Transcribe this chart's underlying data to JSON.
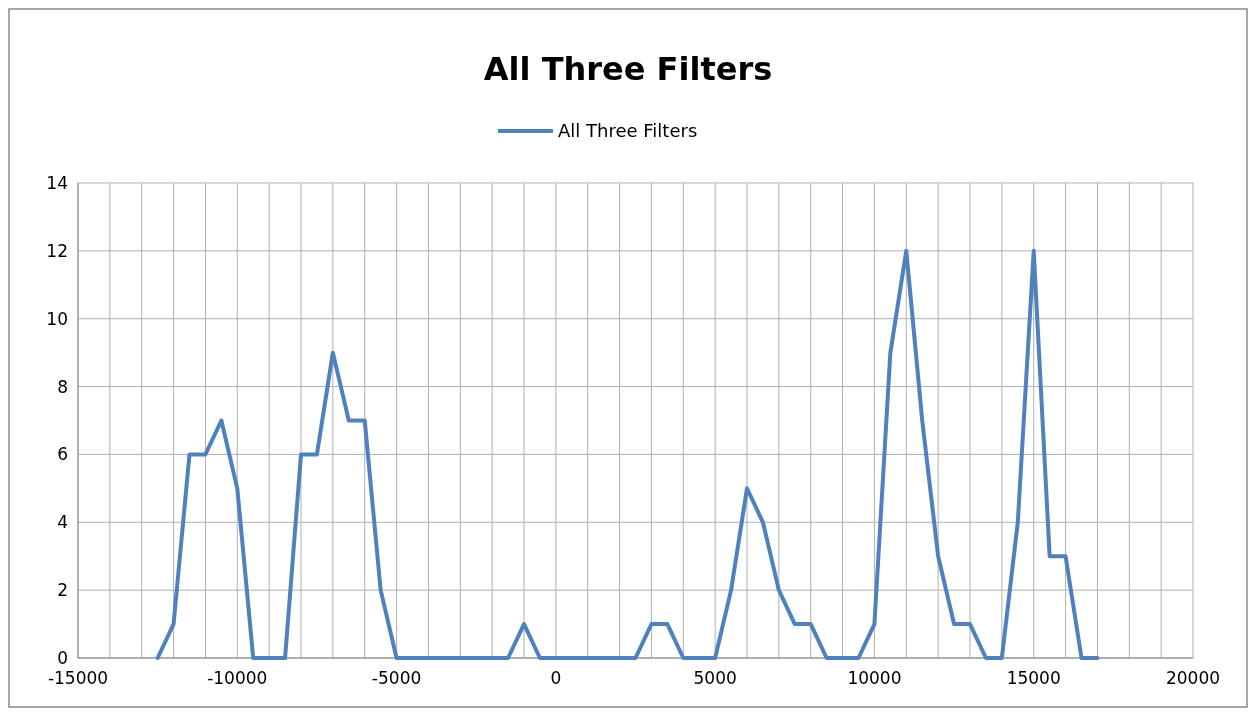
{
  "chart_data": {
    "type": "line",
    "title": "All Three Filters",
    "x": [
      -12500,
      -12000,
      -11500,
      -11000,
      -10500,
      -10000,
      -9500,
      -9000,
      -8500,
      -8000,
      -7500,
      -7000,
      -6500,
      -6000,
      -5500,
      -5000,
      -4500,
      -4000,
      -3500,
      -3000,
      -2500,
      -2000,
      -1500,
      -1000,
      -500,
      0,
      500,
      1000,
      1500,
      2000,
      2500,
      3000,
      3500,
      4000,
      4500,
      5000,
      5500,
      6000,
      6500,
      7000,
      7500,
      8000,
      8500,
      9000,
      9500,
      10000,
      10500,
      11000,
      11500,
      12000,
      12500,
      13000,
      13500,
      14000,
      14500,
      15000,
      15500,
      16000,
      16500,
      17000
    ],
    "series": [
      {
        "name": "All Three Filters",
        "color": "#4f81bd",
        "values": [
          0,
          1,
          6,
          6,
          7,
          5,
          0,
          0,
          0,
          6,
          6,
          9,
          7,
          7,
          2,
          0,
          0,
          0,
          0,
          0,
          0,
          0,
          0,
          1,
          0,
          0,
          0,
          0,
          0,
          0,
          0,
          1,
          1,
          0,
          0,
          0,
          2,
          5,
          4,
          2,
          1,
          1,
          0,
          0,
          0,
          1,
          9,
          12,
          7,
          3,
          1,
          1,
          0,
          0,
          4,
          12,
          3,
          3,
          0,
          0
        ]
      }
    ],
    "xlim": [
      -15000,
      20000
    ],
    "xticks": [
      -15000,
      {
        "value": -14000,
        "label": null
      },
      {
        "value": -13000,
        "label": null
      },
      {
        "value": -12000,
        "label": null
      },
      {
        "value": -11000,
        "label": null
      },
      -10000,
      {
        "value": -9000,
        "label": null
      },
      {
        "value": -8000,
        "label": null
      },
      {
        "value": -7000,
        "label": null
      },
      {
        "value": -6000,
        "label": null
      },
      -5000,
      {
        "value": -4000,
        "label": null
      },
      {
        "value": -3000,
        "label": null
      },
      {
        "value": -2000,
        "label": null
      },
      {
        "value": -1000,
        "label": null
      },
      0,
      {
        "value": 1000,
        "label": null
      },
      {
        "value": 2000,
        "label": null
      },
      {
        "value": 3000,
        "label": null
      },
      {
        "value": 4000,
        "label": null
      },
      5000,
      {
        "value": 6000,
        "label": null
      },
      {
        "value": 7000,
        "label": null
      },
      {
        "value": 8000,
        "label": null
      },
      {
        "value": 9000,
        "label": null
      },
      10000,
      {
        "value": 11000,
        "label": null
      },
      {
        "value": 12000,
        "label": null
      },
      {
        "value": 13000,
        "label": null
      },
      {
        "value": 14000,
        "label": null
      },
      15000,
      {
        "value": 16000,
        "label": null
      },
      {
        "value": 17000,
        "label": null
      },
      {
        "value": 18000,
        "label": null
      },
      {
        "value": 19000,
        "label": null
      },
      20000
    ],
    "ylim": [
      0,
      14
    ],
    "yticks": [
      0,
      2,
      4,
      6,
      8,
      10,
      12,
      14
    ],
    "grid": true,
    "legend": "top",
    "marker": "none",
    "line_style": "solid"
  }
}
